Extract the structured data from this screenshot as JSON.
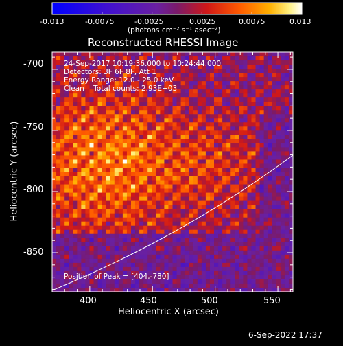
{
  "title": "Reconstructed RHESSI Image",
  "colorbar": {
    "ticks": [
      "-0.013",
      "-0.0075",
      "-0.0025",
      "0.0025",
      "0.0075",
      "0.013"
    ],
    "unit": "(photons cm⁻² s⁻¹ asec⁻²)",
    "range": [
      -0.013,
      0.013
    ]
  },
  "annotations": {
    "time": "24-Sep-2017 10:19:36.000 to 10:24:44.000",
    "detectors": "Detectors: 3F 6F 8F, Att 1",
    "energy": "Energy Range: 12.0 - 25.0 keV",
    "clean": "Clean    Total counts: 2.93E+03",
    "peak": "Position of Peak = [404,-780]"
  },
  "axes": {
    "xlabel": "Heliocentric X (arcsec)",
    "ylabel": "Heliocentric Y (arcsec)",
    "xticks": [
      "400",
      "450",
      "500",
      "550"
    ],
    "yticks": [
      "-700",
      "-750",
      "-800",
      "-850"
    ],
    "xlim": [
      370,
      562
    ],
    "ylim": [
      -882,
      -686
    ]
  },
  "timestamp": "6-Sep-2022 17:37",
  "colors": {
    "background": "#000000",
    "text": "#ffffff"
  }
}
